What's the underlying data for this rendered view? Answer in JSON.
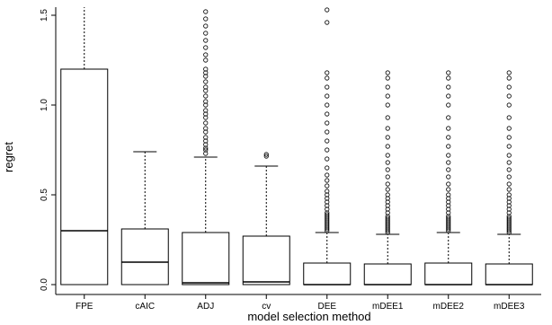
{
  "chart_data": {
    "type": "boxplot",
    "xlabel": "model selection method",
    "ylabel": "regret",
    "ylim": [
      0,
      1.55
    ],
    "yticks": [
      0.0,
      0.5,
      1.0,
      1.5
    ],
    "ytick_labels": [
      "0.0",
      "0.5",
      "1.0",
      "1.5"
    ],
    "categories": [
      "FPE",
      "cAIC",
      "ADJ",
      "cv",
      "DEE",
      "mDEE1",
      "mDEE2",
      "mDEE3"
    ],
    "boxes": [
      {
        "name": "FPE",
        "min": 0,
        "q1": 0,
        "median": 0.3,
        "q3": 1.2,
        "max": 1.55,
        "outliers": []
      },
      {
        "name": "cAIC",
        "min": 0,
        "q1": 0,
        "median": 0.125,
        "q3": 0.31,
        "max": 0.74,
        "outliers": []
      },
      {
        "name": "ADJ",
        "min": 0,
        "q1": 0,
        "median": 0.01,
        "q3": 0.29,
        "max": 0.71,
        "outliers": [
          0.73,
          0.75,
          0.76,
          0.78,
          0.8,
          0.82,
          0.85,
          0.87,
          0.9,
          0.93,
          0.95,
          0.97,
          1.0,
          1.02,
          1.05,
          1.08,
          1.1,
          1.13,
          1.16,
          1.18,
          1.2,
          1.25,
          1.28,
          1.32,
          1.36,
          1.4,
          1.44,
          1.48,
          1.52,
          1.55
        ]
      },
      {
        "name": "cv",
        "min": 0,
        "q1": 0,
        "median": 0.015,
        "q3": 0.27,
        "max": 0.66,
        "outliers": [
          0.715,
          0.725
        ]
      },
      {
        "name": "DEE",
        "min": 0,
        "q1": 0,
        "median": 0.0,
        "q3": 0.12,
        "max": 0.29,
        "outliers": [
          0.3,
          0.31,
          0.32,
          0.33,
          0.34,
          0.35,
          0.36,
          0.37,
          0.38,
          0.39,
          0.4,
          0.42,
          0.44,
          0.46,
          0.48,
          0.5,
          0.52,
          0.55,
          0.58,
          0.61,
          0.65,
          0.7,
          0.75,
          0.8,
          0.85,
          0.9,
          0.95,
          1.0,
          1.05,
          1.1,
          1.15,
          1.18,
          1.46,
          1.53
        ]
      },
      {
        "name": "mDEE1",
        "min": 0,
        "q1": 0,
        "median": 0.0,
        "q3": 0.115,
        "max": 0.28,
        "outliers": [
          0.29,
          0.3,
          0.31,
          0.32,
          0.33,
          0.34,
          0.35,
          0.36,
          0.37,
          0.38,
          0.4,
          0.42,
          0.44,
          0.46,
          0.48,
          0.5,
          0.53,
          0.56,
          0.6,
          0.64,
          0.68,
          0.72,
          0.77,
          0.82,
          0.87,
          0.93,
          1.0,
          1.05,
          1.1,
          1.15,
          1.18
        ]
      },
      {
        "name": "mDEE2",
        "min": 0,
        "q1": 0,
        "median": 0.0,
        "q3": 0.12,
        "max": 0.29,
        "outliers": [
          0.3,
          0.31,
          0.32,
          0.33,
          0.34,
          0.35,
          0.36,
          0.37,
          0.38,
          0.4,
          0.42,
          0.44,
          0.46,
          0.48,
          0.5,
          0.53,
          0.56,
          0.6,
          0.64,
          0.68,
          0.72,
          0.77,
          0.82,
          0.87,
          0.93,
          1.0,
          1.05,
          1.1,
          1.15,
          1.18
        ]
      },
      {
        "name": "mDEE3",
        "min": 0,
        "q1": 0,
        "median": 0.0,
        "q3": 0.115,
        "max": 0.28,
        "outliers": [
          0.29,
          0.3,
          0.31,
          0.32,
          0.33,
          0.34,
          0.35,
          0.36,
          0.37,
          0.38,
          0.4,
          0.42,
          0.44,
          0.46,
          0.48,
          0.5,
          0.53,
          0.56,
          0.6,
          0.64,
          0.68,
          0.72,
          0.77,
          0.82,
          0.87,
          0.93,
          1.0,
          1.05,
          1.1,
          1.15,
          1.18
        ]
      }
    ]
  }
}
